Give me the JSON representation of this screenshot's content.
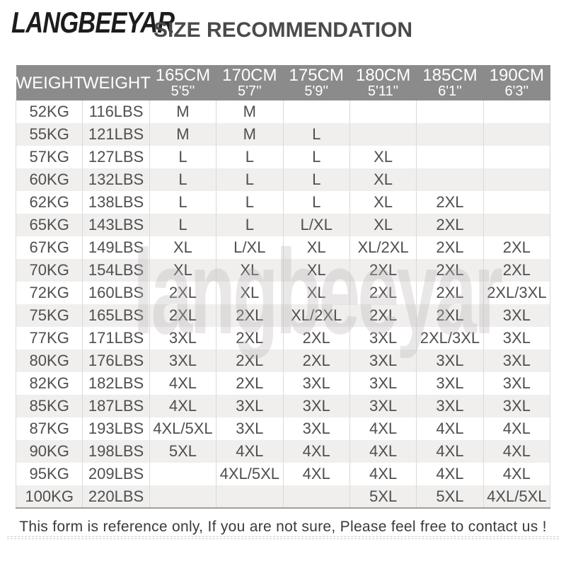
{
  "brand": {
    "logo_text": "LANGBEEYAR"
  },
  "watermark": "langbeeyar",
  "footer": {
    "note": "This form is reference only, If you are not sure, Please feel free to contact us !"
  },
  "colors": {
    "header_bg": "#8b8b8b",
    "header_text": "#ffffff",
    "row_stripe": "#f0efee",
    "cell_text": "#4f4f4f",
    "title_text": "#4a4a4a",
    "logo_text": "#1c1c1c",
    "column_divider": "#dadada",
    "table_bottom_border": "#9f9f9f",
    "watermark_color": "#b5aeae"
  },
  "chart_data": {
    "type": "table",
    "title": "SIZE RECOMMENDATION",
    "header": {
      "weight_kg": "WEIGHT",
      "weight_lbs": "WEIGHT",
      "heights": [
        {
          "cm": "165CM",
          "ft": "5'5''"
        },
        {
          "cm": "170CM",
          "ft": "5'7''"
        },
        {
          "cm": "175CM",
          "ft": "5'9''"
        },
        {
          "cm": "180CM",
          "ft": "5'11''"
        },
        {
          "cm": "185CM",
          "ft": "6'1''"
        },
        {
          "cm": "190CM",
          "ft": "6'3''"
        }
      ]
    },
    "rows": [
      {
        "kg": "52KG",
        "lbs": "116LBS",
        "sizes": [
          "M",
          "M",
          "",
          "",
          "",
          ""
        ]
      },
      {
        "kg": "55KG",
        "lbs": "121LBS",
        "sizes": [
          "M",
          "M",
          "L",
          "",
          "",
          ""
        ]
      },
      {
        "kg": "57KG",
        "lbs": "127LBS",
        "sizes": [
          "L",
          "L",
          "L",
          "XL",
          "",
          ""
        ]
      },
      {
        "kg": "60KG",
        "lbs": "132LBS",
        "sizes": [
          "L",
          "L",
          "L",
          "XL",
          "",
          ""
        ]
      },
      {
        "kg": "62KG",
        "lbs": "138LBS",
        "sizes": [
          "L",
          "L",
          "L",
          "XL",
          "2XL",
          ""
        ]
      },
      {
        "kg": "65KG",
        "lbs": "143LBS",
        "sizes": [
          "L",
          "L",
          "L/XL",
          "XL",
          "2XL",
          ""
        ]
      },
      {
        "kg": "67KG",
        "lbs": "149LBS",
        "sizes": [
          "XL",
          "L/XL",
          "XL",
          "XL/2XL",
          "2XL",
          "2XL"
        ]
      },
      {
        "kg": "70KG",
        "lbs": "154LBS",
        "sizes": [
          "XL",
          "XL",
          "XL",
          "2XL",
          "2XL",
          "2XL"
        ]
      },
      {
        "kg": "72KG",
        "lbs": "160LBS",
        "sizes": [
          "2XL",
          "XL",
          "XL",
          "2XL",
          "2XL",
          "2XL/3XL"
        ]
      },
      {
        "kg": "75KG",
        "lbs": "165LBS",
        "sizes": [
          "2XL",
          "2XL",
          "XL/2XL",
          "2XL",
          "2XL",
          "3XL"
        ]
      },
      {
        "kg": "77KG",
        "lbs": "171LBS",
        "sizes": [
          "3XL",
          "2XL",
          "2XL",
          "3XL",
          "2XL/3XL",
          "3XL"
        ]
      },
      {
        "kg": "80KG",
        "lbs": "176LBS",
        "sizes": [
          "3XL",
          "2XL",
          "2XL",
          "3XL",
          "3XL",
          "3XL"
        ]
      },
      {
        "kg": "82KG",
        "lbs": "182LBS",
        "sizes": [
          "4XL",
          "2XL",
          "3XL",
          "3XL",
          "3XL",
          "3XL"
        ]
      },
      {
        "kg": "85KG",
        "lbs": "187LBS",
        "sizes": [
          "4XL",
          "3XL",
          "3XL",
          "3XL",
          "3XL",
          "3XL"
        ]
      },
      {
        "kg": "87KG",
        "lbs": "193LBS",
        "sizes": [
          "4XL/5XL",
          "3XL",
          "3XL",
          "4XL",
          "4XL",
          "4XL"
        ]
      },
      {
        "kg": "90KG",
        "lbs": "198LBS",
        "sizes": [
          "5XL",
          "4XL",
          "4XL",
          "4XL",
          "4XL",
          "4XL"
        ]
      },
      {
        "kg": "95KG",
        "lbs": "209LBS",
        "sizes": [
          "",
          "4XL/5XL",
          "4XL",
          "4XL",
          "4XL",
          "4XL"
        ]
      },
      {
        "kg": "100KG",
        "lbs": "220LBS",
        "sizes": [
          "",
          "",
          "",
          "5XL",
          "5XL",
          "4XL/5XL"
        ]
      }
    ]
  }
}
